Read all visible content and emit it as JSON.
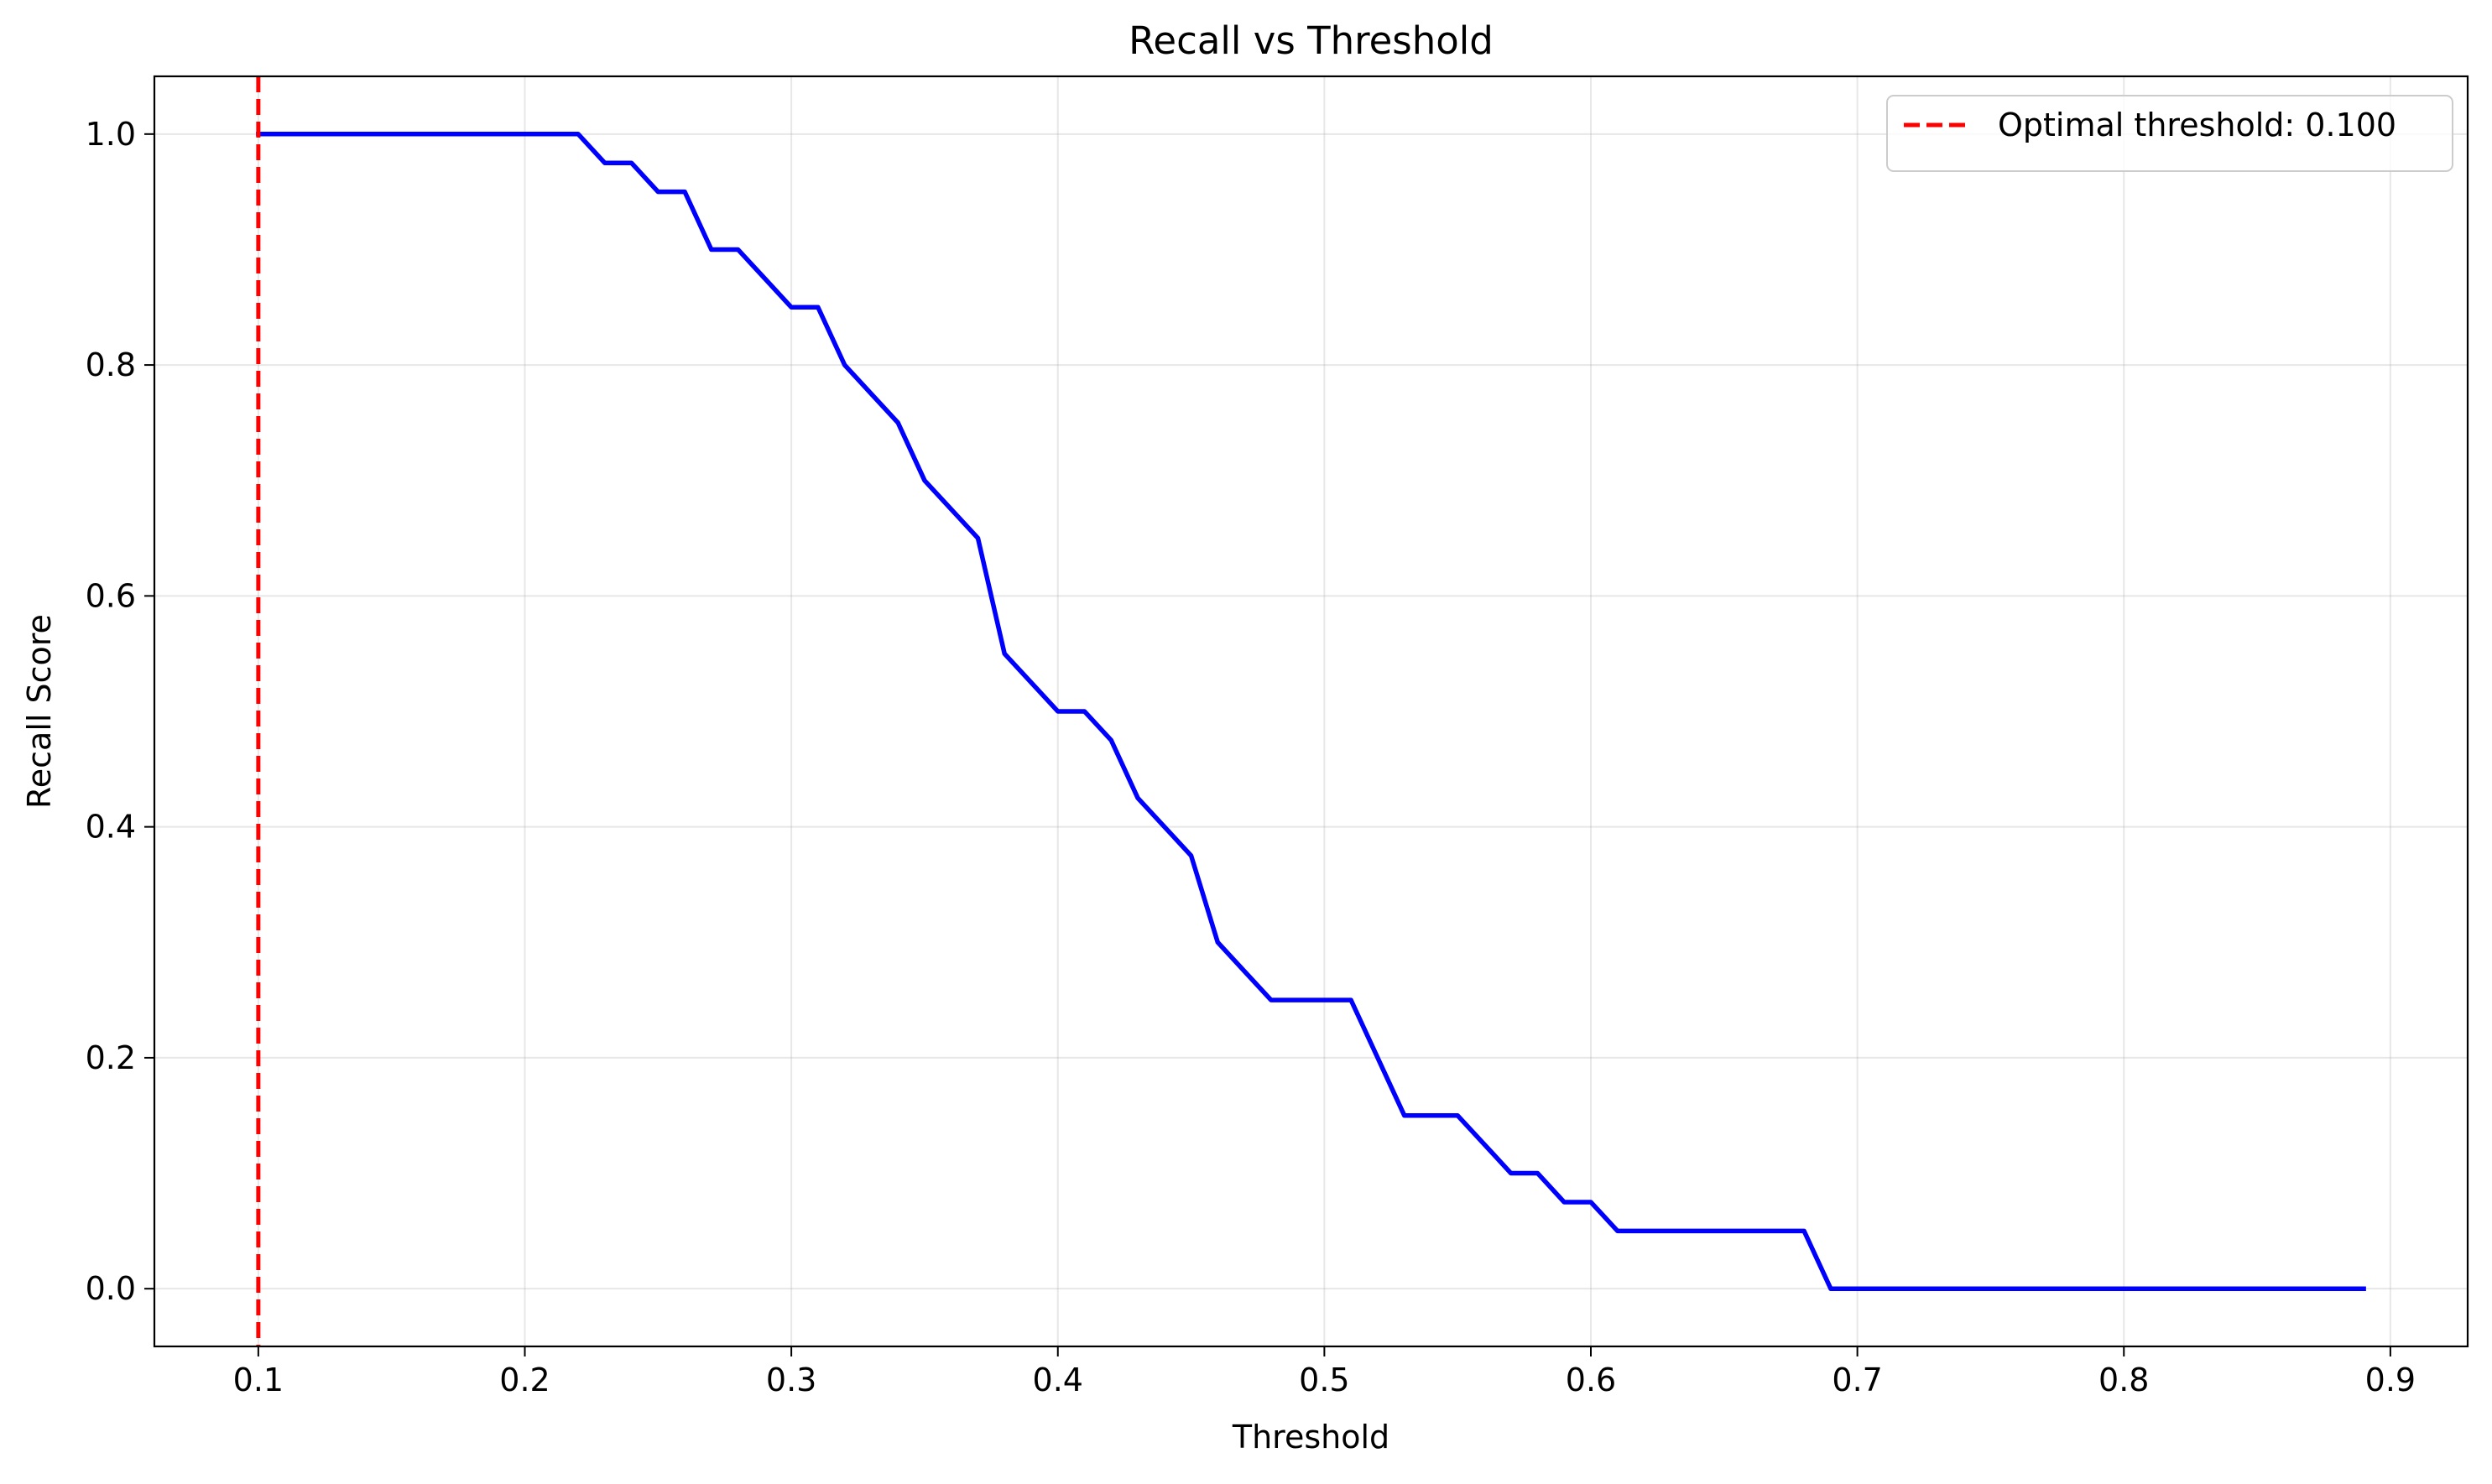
{
  "chart_data": {
    "type": "line",
    "title": "Recall vs Threshold",
    "xlabel": "Threshold",
    "ylabel": "Recall Score",
    "xlim": [
      0.061,
      0.929
    ],
    "ylim": [
      -0.05,
      1.05
    ],
    "xticks": [
      0.1,
      0.2,
      0.3,
      0.4,
      0.5,
      0.6,
      0.7,
      0.8,
      0.9
    ],
    "xtick_labels": [
      "0.1",
      "0.2",
      "0.3",
      "0.4",
      "0.5",
      "0.6",
      "0.7",
      "0.8",
      "0.9"
    ],
    "yticks": [
      0.0,
      0.2,
      0.4,
      0.6,
      0.8,
      1.0
    ],
    "ytick_labels": [
      "0.0",
      "0.2",
      "0.4",
      "0.6",
      "0.8",
      "1.0"
    ],
    "grid": true,
    "legend_position": "top-right",
    "series": [
      {
        "color": "#0000ff",
        "style": "solid",
        "x": [
          0.1,
          0.11,
          0.12,
          0.13,
          0.14,
          0.15,
          0.16,
          0.17,
          0.18,
          0.19,
          0.2,
          0.21,
          0.22,
          0.23,
          0.24,
          0.25,
          0.26,
          0.27,
          0.28,
          0.29,
          0.3,
          0.31,
          0.32,
          0.33,
          0.34,
          0.35,
          0.36,
          0.37,
          0.38,
          0.39,
          0.4,
          0.41,
          0.42,
          0.43,
          0.44,
          0.45,
          0.46,
          0.47,
          0.48,
          0.49,
          0.5,
          0.51,
          0.52,
          0.53,
          0.54,
          0.55,
          0.56,
          0.57,
          0.58,
          0.59,
          0.6,
          0.61,
          0.62,
          0.63,
          0.64,
          0.65,
          0.66,
          0.67,
          0.68,
          0.69,
          0.7,
          0.71,
          0.72,
          0.73,
          0.74,
          0.75,
          0.76,
          0.77,
          0.78,
          0.79,
          0.8,
          0.81,
          0.82,
          0.83,
          0.84,
          0.85,
          0.86,
          0.87,
          0.88,
          0.89
        ],
        "y": [
          1.0,
          1.0,
          1.0,
          1.0,
          1.0,
          1.0,
          1.0,
          1.0,
          1.0,
          1.0,
          1.0,
          1.0,
          1.0,
          0.975,
          0.975,
          0.95,
          0.95,
          0.9,
          0.9,
          0.875,
          0.85,
          0.85,
          0.8,
          0.775,
          0.75,
          0.7,
          0.675,
          0.65,
          0.55,
          0.525,
          0.5,
          0.5,
          0.475,
          0.425,
          0.4,
          0.375,
          0.3,
          0.275,
          0.25,
          0.25,
          0.25,
          0.25,
          0.2,
          0.15,
          0.15,
          0.15,
          0.125,
          0.1,
          0.1,
          0.075,
          0.075,
          0.05,
          0.05,
          0.05,
          0.05,
          0.05,
          0.05,
          0.05,
          0.05,
          0.0,
          0.0,
          0.0,
          0.0,
          0.0,
          0.0,
          0.0,
          0.0,
          0.0,
          0.0,
          0.0,
          0.0,
          0.0,
          0.0,
          0.0,
          0.0,
          0.0,
          0.0,
          0.0,
          0.0,
          0.0
        ]
      },
      {
        "name": "Optimal threshold: 0.100",
        "color": "#ff0000",
        "style": "dashed",
        "orientation": "vertical",
        "x_value": 0.1
      }
    ]
  }
}
